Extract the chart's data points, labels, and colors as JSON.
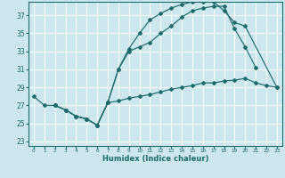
{
  "xlabel": "Humidex (Indice chaleur)",
  "bg_color": "#cce8ee",
  "grid_color": "#ffffff",
  "line_color": "#1f6b6b",
  "xlim": [
    -0.5,
    23.5
  ],
  "ylim": [
    22.5,
    38.5
  ],
  "yticks": [
    23,
    25,
    27,
    29,
    31,
    33,
    35,
    37
  ],
  "xticks": [
    0,
    1,
    2,
    3,
    4,
    5,
    6,
    7,
    8,
    9,
    10,
    11,
    12,
    13,
    14,
    15,
    16,
    17,
    18,
    19,
    20,
    21,
    22,
    23
  ],
  "series": [
    {
      "x": [
        0,
        1,
        2,
        3,
        4,
        5,
        6,
        7,
        8,
        9,
        10,
        11,
        12,
        13,
        14,
        15,
        16,
        17,
        18,
        19,
        20,
        21,
        22,
        23
      ],
      "y": [
        28.0,
        27.0,
        27.0,
        26.5,
        25.8,
        25.5,
        24.8,
        27.3,
        27.5,
        27.8,
        28.0,
        28.2,
        28.5,
        28.8,
        29.0,
        29.2,
        29.5,
        29.5,
        29.7,
        29.8,
        30.0,
        29.5,
        29.2,
        29.0
      ]
    },
    {
      "x": [
        2,
        3,
        4,
        5,
        6,
        7,
        8,
        9,
        10,
        11,
        12,
        13,
        14,
        15,
        16,
        17,
        18,
        19,
        20,
        21
      ],
      "y": [
        27.0,
        26.5,
        25.8,
        25.5,
        24.8,
        27.3,
        31.0,
        33.0,
        33.5,
        34.0,
        35.0,
        35.8,
        36.8,
        37.5,
        37.8,
        38.0,
        38.0,
        35.5,
        33.5,
        31.2
      ]
    },
    {
      "x": [
        2,
        3,
        4,
        5,
        6,
        7,
        8,
        9,
        10,
        11,
        12,
        13,
        14,
        15,
        16,
        17,
        18,
        19,
        20,
        23
      ],
      "y": [
        27.0,
        26.5,
        25.8,
        25.5,
        24.8,
        27.3,
        31.0,
        33.3,
        35.0,
        36.5,
        37.2,
        37.8,
        38.2,
        38.5,
        38.5,
        38.5,
        37.5,
        36.2,
        35.8,
        29.0
      ]
    }
  ]
}
